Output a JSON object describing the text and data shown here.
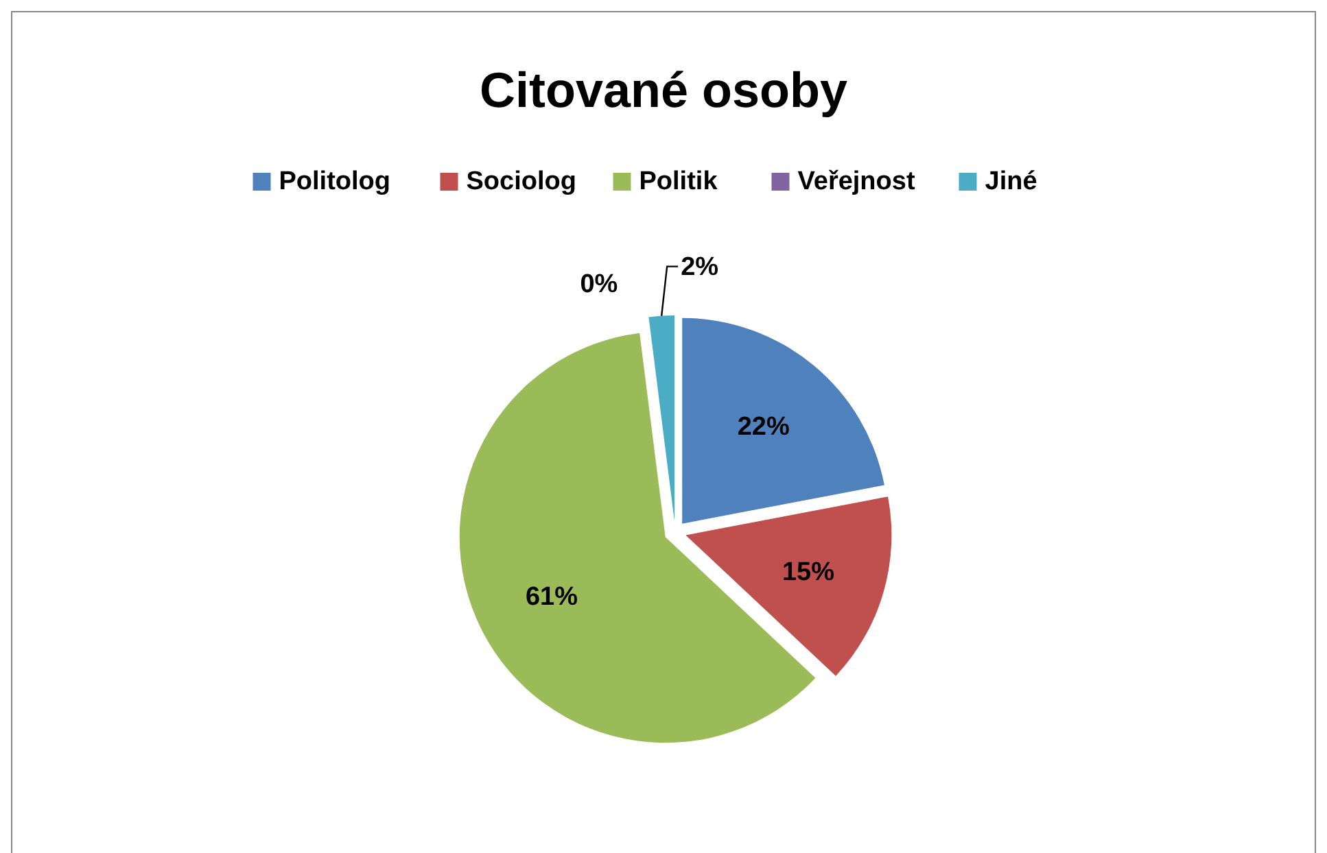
{
  "chart_data": {
    "type": "pie",
    "title": "Citované osoby",
    "categories": [
      "Politolog",
      "Sociolog",
      "Politik",
      "Veřejnost",
      "Jiné"
    ],
    "values": [
      22,
      15,
      61,
      0,
      2
    ],
    "colors": [
      "#4f81bd",
      "#c0504d",
      "#9bbb59",
      "#8064a2",
      "#4bacc6"
    ],
    "value_labels": [
      "22%",
      "15%",
      "61%",
      "0%",
      "2%"
    ],
    "legend": "top"
  }
}
